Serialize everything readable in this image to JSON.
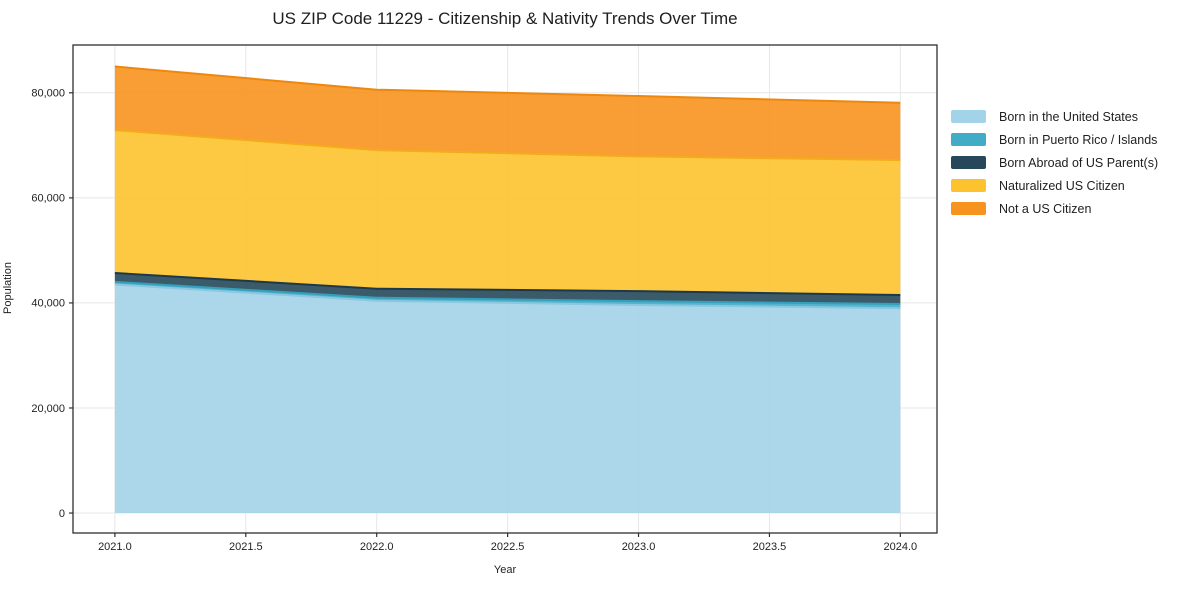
{
  "title": "US ZIP Code 11229 - Citizenship & Nativity Trends Over Time",
  "chart_data": {
    "type": "area",
    "stacked": true,
    "title": "US ZIP Code 11229 - Citizenship & Nativity Trends Over Time",
    "xlabel": "Year",
    "ylabel": "Population",
    "x": [
      2021,
      2022,
      2023,
      2024
    ],
    "series": [
      {
        "name": "Born in the United States",
        "color": "#a3d3e8",
        "edge_color": "#8cc7e0",
        "values": [
          43500,
          40400,
          39600,
          39000
        ]
      },
      {
        "name": "Born in Puerto Rico / Islands",
        "color": "#42abc6",
        "edge_color": "#34a0bb",
        "values": [
          500,
          600,
          750,
          800
        ]
      },
      {
        "name": "Born Abroad of US Parent(s)",
        "color": "#26485a",
        "edge_color": "#1d3949",
        "values": [
          1700,
          1700,
          1900,
          1700
        ]
      },
      {
        "name": "Naturalized US Citizen",
        "color": "#fdc32e",
        "edge_color": "#f3ac1a",
        "values": [
          27200,
          26400,
          25650,
          25700
        ]
      },
      {
        "name": "Not a US Citizen",
        "color": "#f7941f",
        "edge_color": "#ee870e",
        "values": [
          12100,
          11500,
          11500,
          10900
        ]
      }
    ],
    "stacked_totals": [
      85000,
      80600,
      79400,
      78100
    ],
    "x_ticks": [
      2021.0,
      2021.5,
      2022.0,
      2022.5,
      2023.0,
      2023.5,
      2024.0
    ],
    "x_tick_labels": [
      "2021.0",
      "2021.5",
      "2022.0",
      "2022.5",
      "2023.0",
      "2023.5",
      "2024.0"
    ],
    "y_ticks": [
      0,
      20000,
      40000,
      60000,
      80000
    ],
    "y_tick_labels": [
      "0",
      "20,000",
      "40,000",
      "60,000",
      "80,000"
    ],
    "xlim": [
      2020.84,
      2024.14
    ],
    "ylim": [
      -3800,
      89100
    ],
    "grid": true,
    "grid_color": "#e7e7e7",
    "spine_color": "#2f2f2f",
    "tick_label_color": "#1f1f1f",
    "legend_position": "right",
    "fill_opacity": 0.9
  }
}
